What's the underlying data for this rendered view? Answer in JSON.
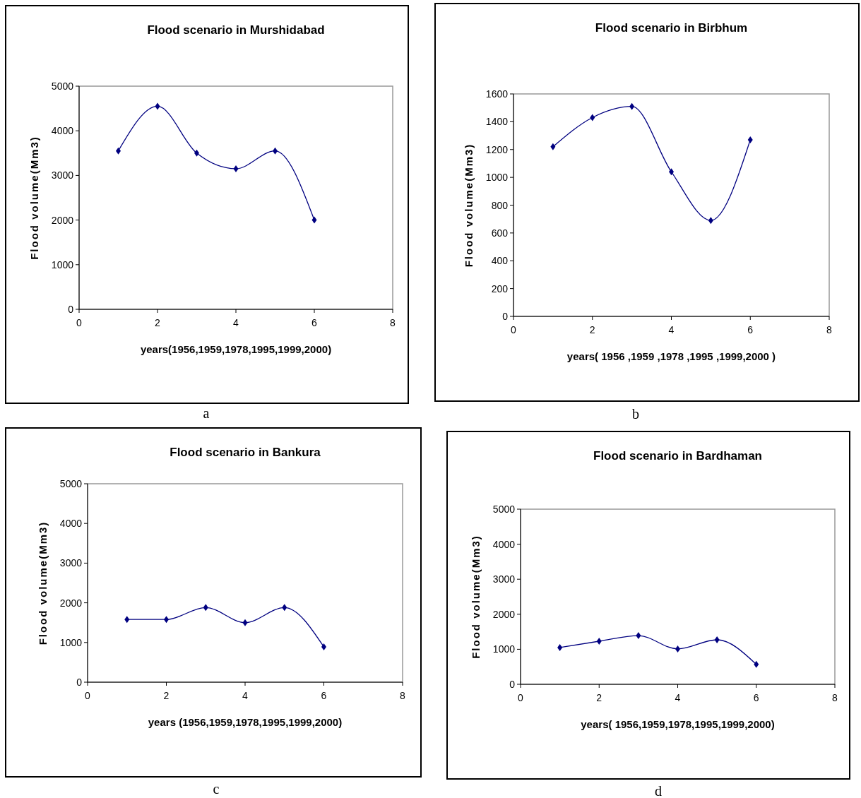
{
  "chart_data": [
    {
      "type": "line",
      "title": "Flood scenario in Murshidabad",
      "xlabel": "years(1956,1959,1978,1995,1999,2000)",
      "ylabel": "Flood volume(Mm3)",
      "annotations": [
        "a"
      ],
      "x": [
        1,
        2,
        3,
        4,
        5,
        6
      ],
      "series": [
        {
          "color": "#000080",
          "values": [
            3550,
            4550,
            3500,
            3150,
            3550,
            2000
          ]
        }
      ],
      "xlim": [
        0,
        8
      ],
      "xticks": [
        0,
        2,
        4,
        6,
        8
      ],
      "ylim": [
        0,
        5000
      ],
      "yticks": [
        0,
        1000,
        2000,
        3000,
        4000,
        5000
      ],
      "grid": false,
      "marker": "diamond",
      "line_style": "solid"
    },
    {
      "type": "line",
      "title": "Flood scenario in Birbhum",
      "xlabel": "years( 1956 ,1959 ,1978 ,1995 ,1999,2000 )",
      "ylabel": "Flood volume(Mm3)",
      "annotations": [
        "b"
      ],
      "x": [
        1,
        2,
        3,
        4,
        5,
        6
      ],
      "series": [
        {
          "color": "#000080",
          "values": [
            1220,
            1430,
            1510,
            1040,
            690,
            1270
          ]
        }
      ],
      "xlim": [
        0,
        8
      ],
      "xticks": [
        0,
        2,
        4,
        6,
        8
      ],
      "ylim": [
        0,
        1600
      ],
      "yticks": [
        0,
        200,
        400,
        600,
        800,
        1000,
        1200,
        1400,
        1600
      ],
      "grid": false,
      "marker": "diamond",
      "line_style": "solid"
    },
    {
      "type": "line",
      "title": "Flood scenario in Bankura",
      "xlabel": "years (1956,1959,1978,1995,1999,2000)",
      "ylabel": "Flood volume(Mm3)",
      "annotations": [
        "c"
      ],
      "x": [
        1,
        2,
        3,
        4,
        5,
        6
      ],
      "series": [
        {
          "color": "#000080",
          "values": [
            1580,
            1580,
            1880,
            1500,
            1880,
            890
          ]
        }
      ],
      "xlim": [
        0,
        8
      ],
      "xticks": [
        0,
        2,
        4,
        6,
        8
      ],
      "ylim": [
        0,
        5000
      ],
      "yticks": [
        0,
        1000,
        2000,
        3000,
        4000,
        5000
      ],
      "grid": false,
      "marker": "diamond",
      "line_style": "solid"
    },
    {
      "type": "line",
      "title": "Flood scenario in Bardhaman",
      "xlabel": "years( 1956,1959,1978,1995,1999,2000)",
      "ylabel": "Flood volume(Mm3)",
      "annotations": [
        "d"
      ],
      "x": [
        1,
        2,
        3,
        4,
        5,
        6
      ],
      "series": [
        {
          "color": "#000080",
          "values": [
            1050,
            1230,
            1390,
            1010,
            1270,
            570
          ]
        }
      ],
      "xlim": [
        0,
        8
      ],
      "xticks": [
        0,
        2,
        4,
        6,
        8
      ],
      "ylim": [
        0,
        5000
      ],
      "yticks": [
        0,
        1000,
        2000,
        3000,
        4000,
        5000
      ],
      "grid": false,
      "marker": "diamond",
      "line_style": "solid"
    }
  ]
}
